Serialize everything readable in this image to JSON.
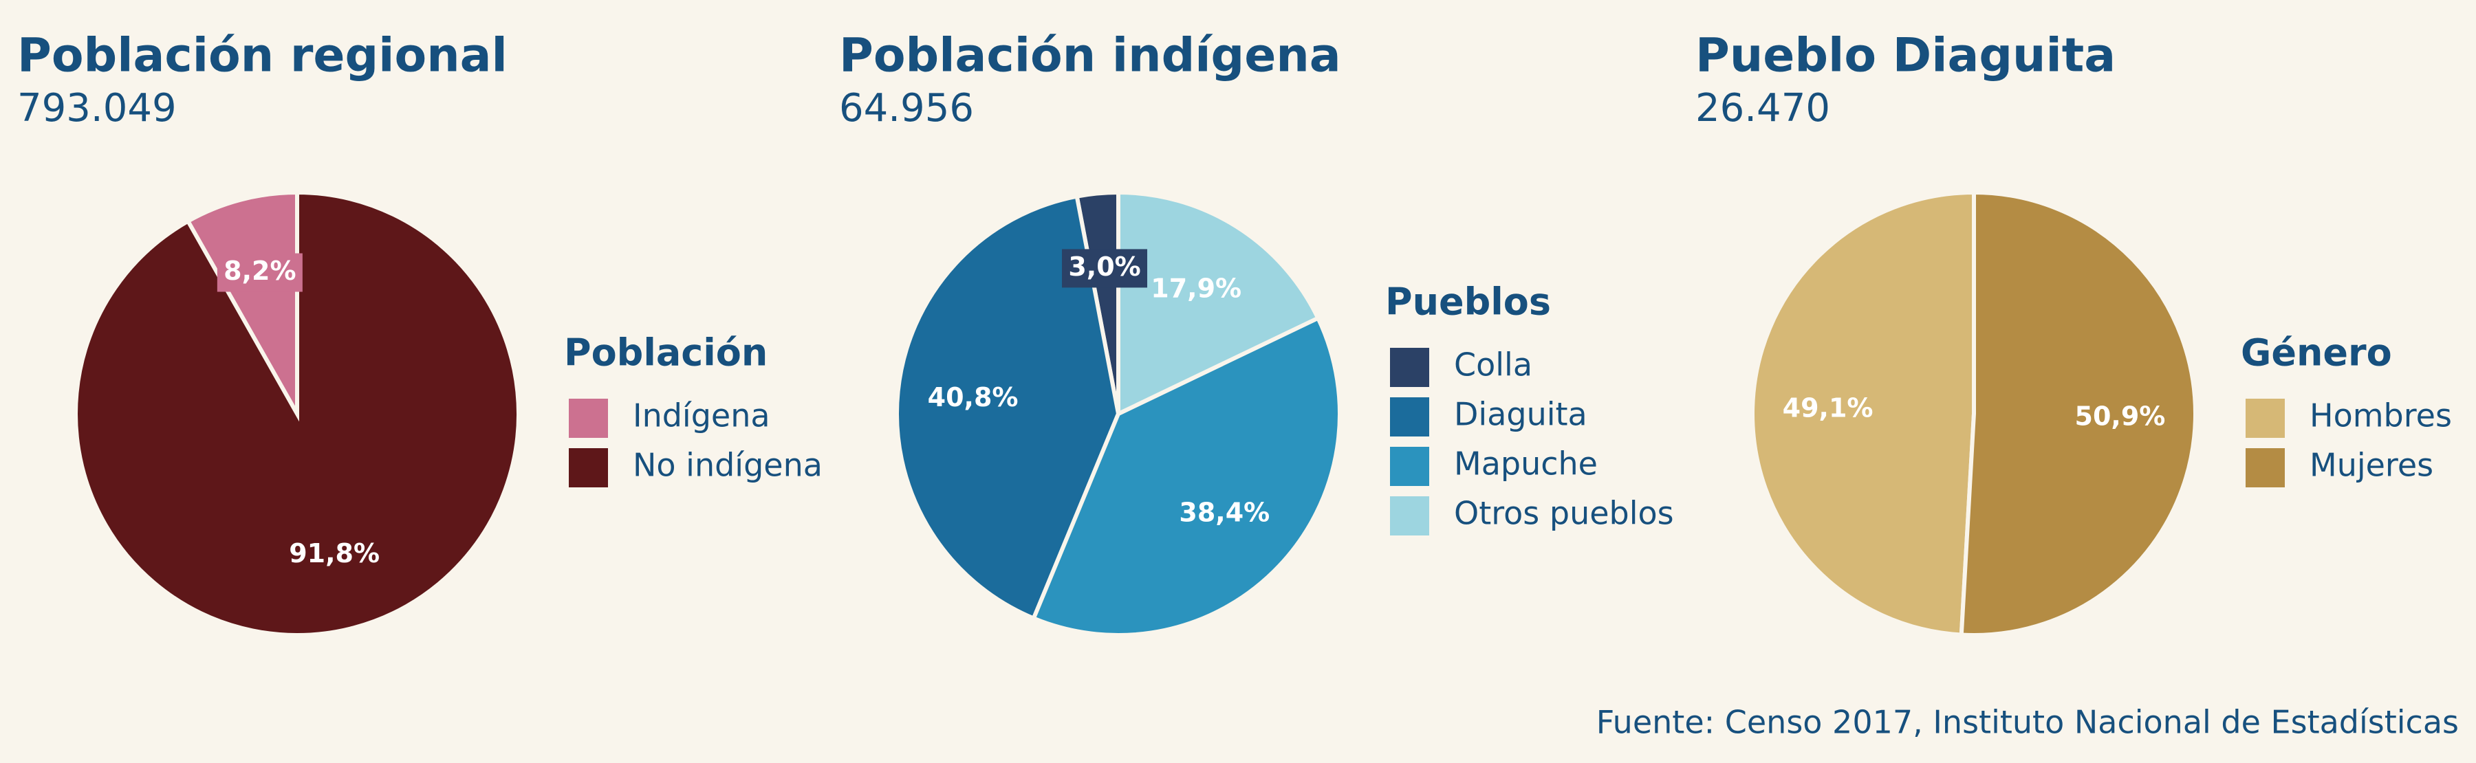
{
  "chart_data": [
    {
      "type": "pie",
      "title": "Población regional",
      "subtitle": "793.049",
      "legend_title": "Población",
      "categories": [
        "Indígena",
        "No indígena"
      ],
      "values": [
        8.2,
        91.8
      ],
      "value_labels": [
        "8,2%",
        "91,8%"
      ],
      "colors": [
        "#cc7190",
        "#5e1719"
      ]
    },
    {
      "type": "pie",
      "title": "Población indígena",
      "subtitle": "64.956",
      "legend_title": "Pueblos",
      "categories": [
        "Colla",
        "Diaguita",
        "Mapuche",
        "Otros pueblos"
      ],
      "values": [
        3.0,
        40.8,
        38.4,
        17.9
      ],
      "value_labels": [
        "3,0%",
        "40,8%",
        "38,4%",
        "17,9%"
      ],
      "colors": [
        "#2b4166",
        "#1b6c9c",
        "#2b93be",
        "#9dd5e0"
      ]
    },
    {
      "type": "pie",
      "title": "Pueblo Diaguita",
      "subtitle": "26.470",
      "legend_title": "Género",
      "categories": [
        "Hombres",
        "Mujeres"
      ],
      "values": [
        49.1,
        50.9
      ],
      "value_labels": [
        "49,1%",
        "50,9%"
      ],
      "colors": [
        "#d6b876",
        "#b48c44"
      ]
    }
  ],
  "source": "Fuente: Censo 2017, Instituto Nacional de Estadísticas"
}
